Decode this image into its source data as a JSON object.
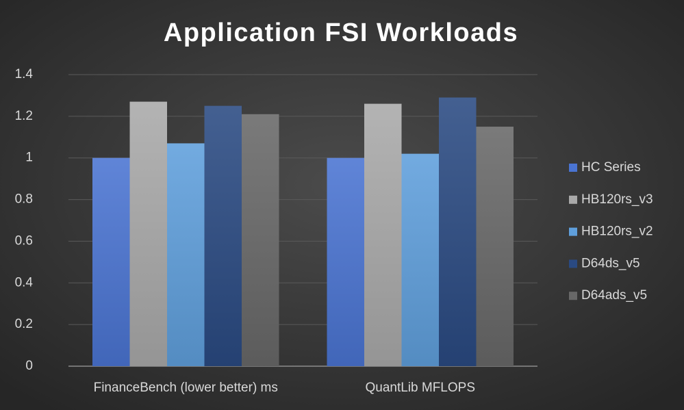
{
  "chart_data": {
    "type": "bar",
    "title": "Application FSI Workloads",
    "categories": [
      "FinanceBench (lower better) ms",
      "QuantLib MFLOPS"
    ],
    "series": [
      {
        "name": "HC Series",
        "color": "#4a74d2",
        "values": [
          1.0,
          1.0
        ]
      },
      {
        "name": "HB120rs_v3",
        "color": "#a9a9a9",
        "values": [
          1.27,
          1.26
        ]
      },
      {
        "name": "HB120rs_v2",
        "color": "#5f9fdc",
        "values": [
          1.07,
          1.02
        ]
      },
      {
        "name": "D64ds_v5",
        "color": "#2a4a82",
        "values": [
          1.25,
          1.29
        ]
      },
      {
        "name": "D64ads_v5",
        "color": "#686868",
        "values": [
          1.21,
          1.15
        ]
      }
    ],
    "ylim": [
      0,
      1.4
    ],
    "yticks": [
      0,
      0.2,
      0.4,
      0.6,
      0.8,
      1,
      1.2,
      1.4
    ],
    "grid": true,
    "legend": "right"
  }
}
